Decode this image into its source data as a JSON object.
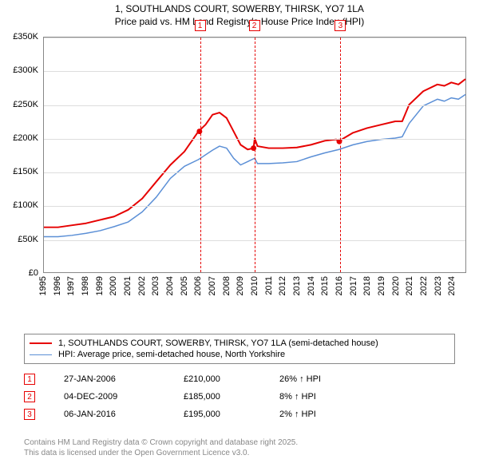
{
  "title": {
    "line1": "1, SOUTHLANDS COURT, SOWERBY, THIRSK, YO7 1LA",
    "line2": "Price paid vs. HM Land Registry's House Price Index (HPI)"
  },
  "chart": {
    "type": "line",
    "background_color": "#ffffff",
    "grid_color": "#dddddd",
    "axis_color": "#888888",
    "font_size": 11,
    "ylim": [
      0,
      350000
    ],
    "ytick_step": 50000,
    "ytick_format": "£{v}K",
    "yticks": [
      "£0",
      "£50K",
      "£100K",
      "£150K",
      "£200K",
      "£250K",
      "£300K",
      "£350K"
    ],
    "xlim": [
      1995,
      2025
    ],
    "xtick_step": 1,
    "xticks": [
      "1995",
      "1996",
      "1997",
      "1998",
      "1999",
      "2000",
      "2001",
      "2002",
      "2003",
      "2004",
      "2005",
      "2006",
      "2007",
      "2008",
      "2009",
      "2010",
      "2011",
      "2012",
      "2013",
      "2014",
      "2015",
      "2016",
      "2017",
      "2018",
      "2019",
      "2020",
      "2021",
      "2022",
      "2023",
      "2024"
    ],
    "series": [
      {
        "name": "1, SOUTHLANDS COURT, SOWERBY, THIRSK, YO7 1LA (semi-detached house)",
        "color": "#e60000",
        "line_width": 2,
        "data": [
          [
            1995,
            67000
          ],
          [
            1996,
            67000
          ],
          [
            1997,
            70000
          ],
          [
            1998,
            73000
          ],
          [
            1999,
            78000
          ],
          [
            2000,
            83000
          ],
          [
            2001,
            93000
          ],
          [
            2002,
            110000
          ],
          [
            2003,
            135000
          ],
          [
            2004,
            160000
          ],
          [
            2005,
            180000
          ],
          [
            2006,
            210000
          ],
          [
            2006.5,
            220000
          ],
          [
            2007,
            235000
          ],
          [
            2007.5,
            238000
          ],
          [
            2008,
            230000
          ],
          [
            2008.5,
            210000
          ],
          [
            2009,
            190000
          ],
          [
            2009.5,
            183000
          ],
          [
            2009.92,
            185000
          ],
          [
            2010,
            200000
          ],
          [
            2010.2,
            188000
          ],
          [
            2011,
            185000
          ],
          [
            2012,
            185000
          ],
          [
            2013,
            186000
          ],
          [
            2014,
            190000
          ],
          [
            2015,
            196000
          ],
          [
            2015.8,
            198000
          ],
          [
            2016.02,
            195000
          ],
          [
            2016.2,
            198000
          ],
          [
            2017,
            208000
          ],
          [
            2018,
            215000
          ],
          [
            2019,
            220000
          ],
          [
            2020,
            225000
          ],
          [
            2020.5,
            225000
          ],
          [
            2021,
            250000
          ],
          [
            2022,
            270000
          ],
          [
            2023,
            280000
          ],
          [
            2023.5,
            278000
          ],
          [
            2024,
            283000
          ],
          [
            2024.5,
            280000
          ],
          [
            2025,
            288000
          ]
        ]
      },
      {
        "name": "HPI: Average price, semi-detached house, North Yorkshire",
        "color": "#5b8fd6",
        "line_width": 1.5,
        "data": [
          [
            1995,
            53000
          ],
          [
            1996,
            53000
          ],
          [
            1997,
            55000
          ],
          [
            1998,
            58000
          ],
          [
            1999,
            62000
          ],
          [
            2000,
            68000
          ],
          [
            2001,
            75000
          ],
          [
            2002,
            90000
          ],
          [
            2003,
            112000
          ],
          [
            2004,
            140000
          ],
          [
            2005,
            158000
          ],
          [
            2006,
            168000
          ],
          [
            2007,
            182000
          ],
          [
            2007.5,
            188000
          ],
          [
            2008,
            185000
          ],
          [
            2008.5,
            170000
          ],
          [
            2009,
            160000
          ],
          [
            2009.5,
            165000
          ],
          [
            2010,
            170000
          ],
          [
            2010.2,
            162000
          ],
          [
            2011,
            162000
          ],
          [
            2012,
            163000
          ],
          [
            2013,
            165000
          ],
          [
            2014,
            172000
          ],
          [
            2015,
            178000
          ],
          [
            2016,
            183000
          ],
          [
            2017,
            190000
          ],
          [
            2018,
            195000
          ],
          [
            2019,
            198000
          ],
          [
            2020,
            200000
          ],
          [
            2020.5,
            202000
          ],
          [
            2021,
            222000
          ],
          [
            2022,
            248000
          ],
          [
            2023,
            258000
          ],
          [
            2023.5,
            255000
          ],
          [
            2024,
            260000
          ],
          [
            2024.5,
            258000
          ],
          [
            2025,
            265000
          ]
        ]
      }
    ],
    "markers": [
      {
        "n": "1",
        "year": 2006.07,
        "color": "#e60000"
      },
      {
        "n": "2",
        "year": 2009.92,
        "color": "#e60000"
      },
      {
        "n": "3",
        "year": 2016.02,
        "color": "#e60000"
      }
    ],
    "marker_points": [
      {
        "year": 2006.07,
        "value": 210000,
        "color": "#e60000"
      },
      {
        "year": 2009.92,
        "value": 185000,
        "color": "#e60000"
      },
      {
        "year": 2016.02,
        "value": 195000,
        "color": "#e60000"
      }
    ]
  },
  "legend": {
    "rows": [
      {
        "color": "#e60000",
        "width": 2,
        "label": "1, SOUTHLANDS COURT, SOWERBY, THIRSK, YO7 1LA (semi-detached house)"
      },
      {
        "color": "#5b8fd6",
        "width": 1.5,
        "label": "HPI: Average price, semi-detached house, North Yorkshire"
      }
    ]
  },
  "transactions": {
    "marker_color": "#e60000",
    "rows": [
      {
        "n": "1",
        "date": "27-JAN-2006",
        "price": "£210,000",
        "delta": "26% ↑ HPI"
      },
      {
        "n": "2",
        "date": "04-DEC-2009",
        "price": "£185,000",
        "delta": "8% ↑ HPI"
      },
      {
        "n": "3",
        "date": "06-JAN-2016",
        "price": "£195,000",
        "delta": "2% ↑ HPI"
      }
    ]
  },
  "footer": {
    "line1": "Contains HM Land Registry data © Crown copyright and database right 2025.",
    "line2": "This data is licensed under the Open Government Licence v3.0."
  }
}
